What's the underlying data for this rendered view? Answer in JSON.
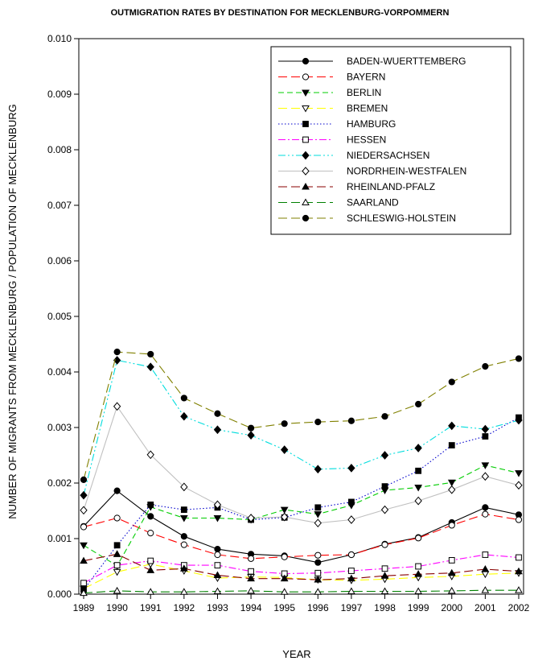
{
  "chart_data": {
    "type": "line",
    "title": "OUTMIGRATION RATES BY DESTINATION FOR MECKLENBURG-VORPOMMERN",
    "xlabel": "YEAR",
    "ylabel": "NUMBER OF MIGRANTS FROM MECKLENBURG / POPULATION OF MECKLENBURG",
    "x": [
      "1989",
      "1990",
      "1991",
      "1992",
      "1993",
      "1994",
      "1995",
      "1996",
      "1997",
      "1998",
      "1999",
      "2000",
      "2001",
      "2002"
    ],
    "ylim": [
      0,
      0.01
    ],
    "yticks": [
      "0.000",
      "0.001",
      "0.002",
      "0.003",
      "0.004",
      "0.005",
      "0.006",
      "0.007",
      "0.008",
      "0.009",
      "0.010"
    ],
    "grid": false,
    "legend_position": "top-right",
    "series": [
      {
        "name": "BADEN-WUERTTEMBERG",
        "color": "#000000",
        "dash": "solid",
        "marker": "circle",
        "filled": true,
        "values": [
          0.00122,
          0.00186,
          0.0014,
          0.00104,
          0.00081,
          0.00072,
          0.00069,
          0.00057,
          0.00071,
          0.0009,
          0.00102,
          0.00129,
          0.00156,
          0.00143
        ]
      },
      {
        "name": "BAYERN",
        "color": "#ff0000",
        "dash": "longdash",
        "marker": "circle",
        "filled": false,
        "values": [
          0.00121,
          0.00137,
          0.0011,
          0.00089,
          0.00071,
          0.00064,
          0.00067,
          0.0007,
          0.00071,
          0.00089,
          0.00101,
          0.00124,
          0.00144,
          0.00134
        ]
      },
      {
        "name": "BERLIN",
        "color": "#00cc00",
        "dash": "dash",
        "marker": "triangle-down",
        "filled": true,
        "values": [
          0.00088,
          0.00051,
          0.00157,
          0.00137,
          0.00137,
          0.00134,
          0.00152,
          0.00144,
          0.0016,
          0.00187,
          0.00192,
          0.00201,
          0.00232,
          0.00218
        ]
      },
      {
        "name": "BREMEN",
        "color": "#ffff00",
        "dash": "longdash",
        "marker": "triangle-down",
        "filled": false,
        "values": [
          0.0001,
          0.0004,
          0.00054,
          0.00042,
          0.00029,
          0.00031,
          0.0003,
          0.00026,
          0.00025,
          0.00027,
          0.0003,
          0.00032,
          0.00036,
          0.00038
        ]
      },
      {
        "name": "HAMBURG",
        "color": "#0000cc",
        "dash": "dot",
        "marker": "square",
        "filled": true,
        "values": [
          8e-05,
          0.00088,
          0.00161,
          0.00152,
          0.00156,
          0.00134,
          0.00138,
          0.00156,
          0.00166,
          0.00194,
          0.00222,
          0.00268,
          0.00284,
          0.00318
        ]
      },
      {
        "name": "HESSEN",
        "color": "#ff00ff",
        "dash": "dashdot",
        "marker": "square",
        "filled": false,
        "values": [
          0.0002,
          0.00052,
          0.0006,
          0.00052,
          0.00052,
          0.00041,
          0.00037,
          0.00038,
          0.00042,
          0.00046,
          0.0005,
          0.00061,
          0.00071,
          0.00066
        ]
      },
      {
        "name": "NIEDERSACHSEN",
        "color": "#00dddd",
        "dash": "dashdotdot",
        "marker": "diamond",
        "filled": true,
        "values": [
          0.00178,
          0.00421,
          0.00409,
          0.0032,
          0.00296,
          0.00286,
          0.0026,
          0.00225,
          0.00227,
          0.0025,
          0.00263,
          0.00303,
          0.00297,
          0.00313
        ]
      },
      {
        "name": "NORDRHEIN-WESTFALEN",
        "color": "#c0c0c0",
        "dash": "solid",
        "marker": "diamond",
        "filled": false,
        "values": [
          0.00151,
          0.00338,
          0.00251,
          0.00193,
          0.00161,
          0.00137,
          0.00139,
          0.00128,
          0.00134,
          0.00152,
          0.00168,
          0.00188,
          0.00212,
          0.00196
        ]
      },
      {
        "name": "RHEINLAND-PFALZ",
        "color": "#880000",
        "dash": "longdash",
        "marker": "triangle-up",
        "filled": true,
        "values": [
          0.0006,
          0.00072,
          0.00043,
          0.00046,
          0.00034,
          0.00028,
          0.00028,
          0.00026,
          0.00028,
          0.00033,
          0.00036,
          0.00038,
          0.00045,
          0.00041
        ]
      },
      {
        "name": "SAARLAND",
        "color": "#008000",
        "dash": "longdash",
        "marker": "triangle-up",
        "filled": false,
        "values": [
          2e-05,
          6e-05,
          4e-05,
          4e-05,
          5e-05,
          6e-05,
          4e-05,
          4e-05,
          5e-05,
          5e-05,
          5e-05,
          6e-05,
          7e-05,
          7e-05
        ]
      },
      {
        "name": "SCHLESWIG-HOLSTEIN",
        "color": "#808000",
        "dash": "longdash",
        "marker": "circle",
        "filled": true,
        "values": [
          0.00206,
          0.00436,
          0.00432,
          0.00353,
          0.00325,
          0.00299,
          0.00307,
          0.0031,
          0.00312,
          0.0032,
          0.00342,
          0.00382,
          0.0041,
          0.00424
        ]
      }
    ]
  }
}
